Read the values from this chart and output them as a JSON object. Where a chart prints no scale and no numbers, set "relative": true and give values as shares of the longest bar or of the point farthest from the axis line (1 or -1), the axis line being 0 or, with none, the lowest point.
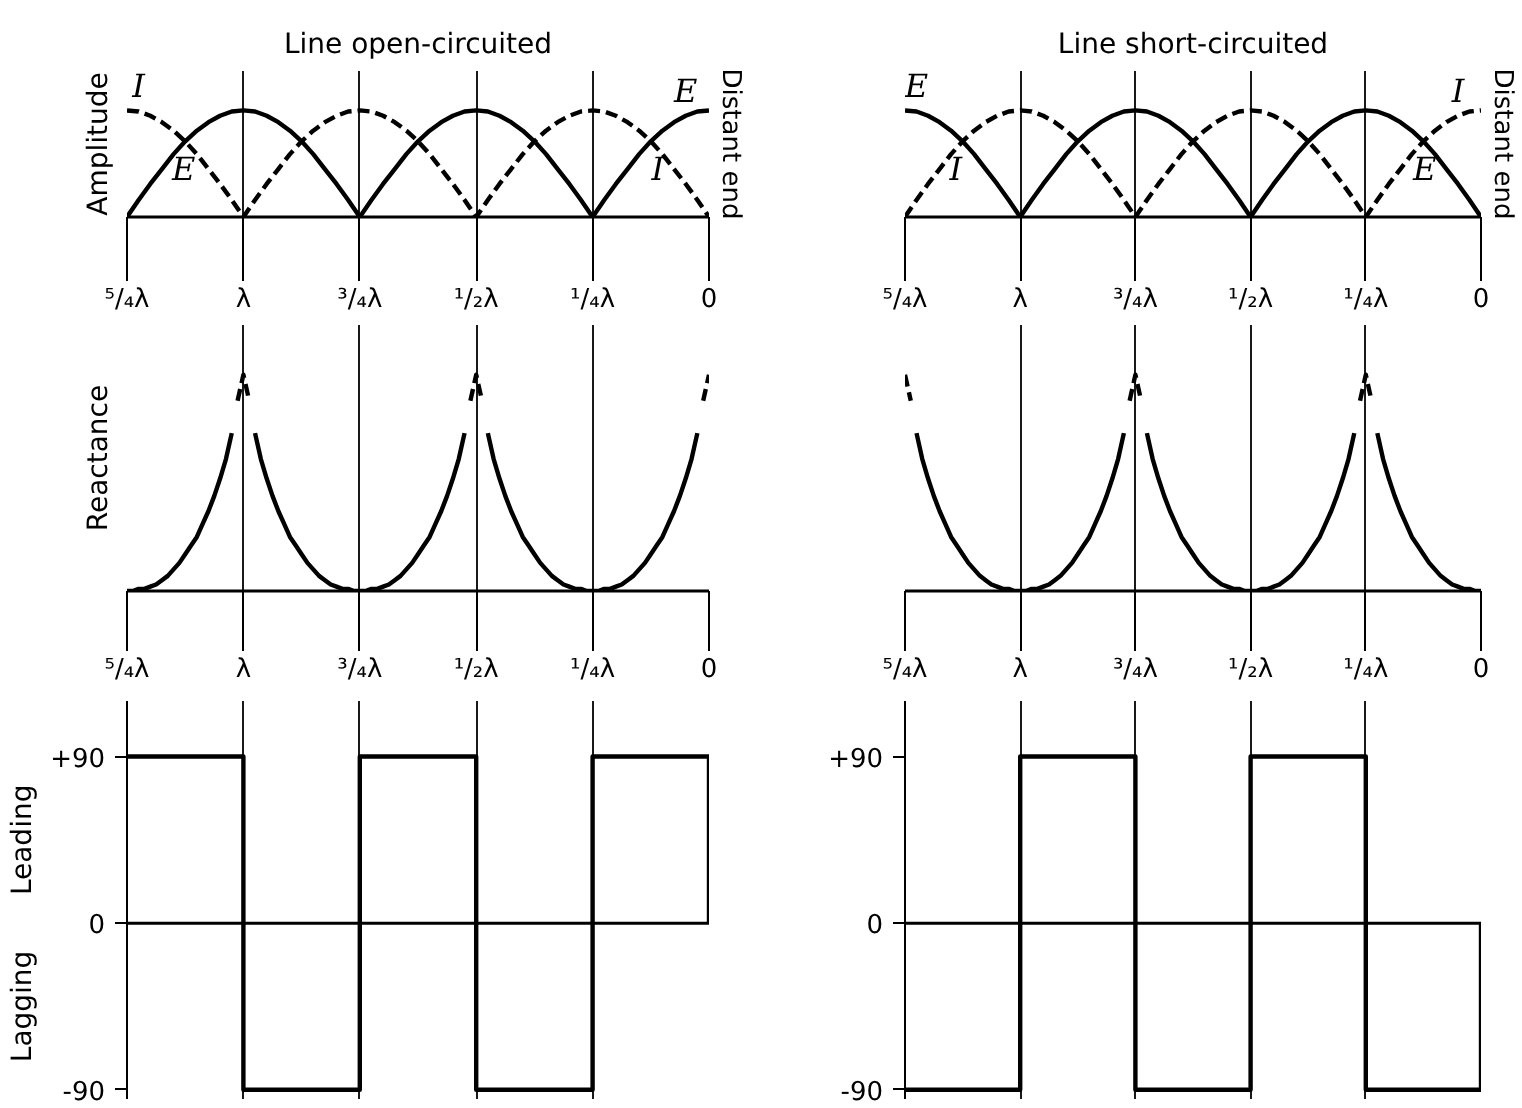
{
  "chart_data": [
    {
      "type": "line",
      "title": "Line open-circuited",
      "ylabel": "Amplitude",
      "relative": true,
      "grid": "x",
      "categories": [
        "⁵/₄λ",
        null,
        null,
        null,
        null,
        null,
        null,
        null,
        null,
        null,
        "λ",
        null,
        null,
        null,
        null,
        null,
        null,
        null,
        null,
        null,
        "³/₄λ",
        null,
        null,
        null,
        null,
        null,
        null,
        null,
        null,
        null,
        "¹/₂λ",
        null,
        null,
        null,
        null,
        null,
        null,
        null,
        null,
        null,
        "¹/₄λ",
        null,
        null,
        null,
        null,
        null,
        null,
        null,
        null,
        null,
        "0"
      ],
      "annotations": [
        "Distant end"
      ],
      "series": [
        {
          "name": "E",
          "color": "#000000",
          "line_style": "solid",
          "values": [
            0,
            0.16,
            0.31,
            0.45,
            0.59,
            0.71,
            0.81,
            0.89,
            0.95,
            0.99,
            1,
            0.99,
            0.95,
            0.89,
            0.81,
            0.71,
            0.59,
            0.45,
            0.31,
            0.16,
            0,
            0.16,
            0.31,
            0.45,
            0.59,
            0.71,
            0.81,
            0.89,
            0.95,
            0.99,
            1,
            0.99,
            0.95,
            0.89,
            0.81,
            0.71,
            0.59,
            0.45,
            0.31,
            0.16,
            0,
            0.16,
            0.31,
            0.45,
            0.59,
            0.71,
            0.81,
            0.89,
            0.95,
            0.99,
            1
          ]
        },
        {
          "name": "I",
          "color": "#000000",
          "line_style": "dashed",
          "values": [
            1,
            0.99,
            0.95,
            0.89,
            0.81,
            0.71,
            0.59,
            0.45,
            0.31,
            0.16,
            0,
            0.16,
            0.31,
            0.45,
            0.59,
            0.71,
            0.81,
            0.89,
            0.95,
            0.99,
            1,
            0.99,
            0.95,
            0.89,
            0.81,
            0.71,
            0.59,
            0.45,
            0.31,
            0.16,
            0,
            0.16,
            0.31,
            0.45,
            0.59,
            0.71,
            0.81,
            0.89,
            0.95,
            0.99,
            1,
            0.99,
            0.95,
            0.89,
            0.81,
            0.71,
            0.59,
            0.45,
            0.31,
            0.16,
            0
          ]
        }
      ]
    },
    {
      "type": "line",
      "title": "Line short-circuited",
      "relative": true,
      "grid": "x",
      "categories": [
        "⁵/₄λ",
        null,
        null,
        null,
        null,
        null,
        null,
        null,
        null,
        null,
        "λ",
        null,
        null,
        null,
        null,
        null,
        null,
        null,
        null,
        null,
        "³/₄λ",
        null,
        null,
        null,
        null,
        null,
        null,
        null,
        null,
        null,
        "¹/₂λ",
        null,
        null,
        null,
        null,
        null,
        null,
        null,
        null,
        null,
        "¹/₄λ",
        null,
        null,
        null,
        null,
        null,
        null,
        null,
        null,
        null,
        "0"
      ],
      "annotations": [
        "Distant end"
      ],
      "series": [
        {
          "name": "E",
          "color": "#000000",
          "line_style": "solid",
          "values": [
            1,
            0.99,
            0.95,
            0.89,
            0.81,
            0.71,
            0.59,
            0.45,
            0.31,
            0.16,
            0,
            0.16,
            0.31,
            0.45,
            0.59,
            0.71,
            0.81,
            0.89,
            0.95,
            0.99,
            1,
            0.99,
            0.95,
            0.89,
            0.81,
            0.71,
            0.59,
            0.45,
            0.31,
            0.16,
            0,
            0.16,
            0.31,
            0.45,
            0.59,
            0.71,
            0.81,
            0.89,
            0.95,
            0.99,
            1,
            0.99,
            0.95,
            0.89,
            0.81,
            0.71,
            0.59,
            0.45,
            0.31,
            0.16,
            0
          ]
        },
        {
          "name": "I",
          "color": "#000000",
          "line_style": "dashed",
          "values": [
            0,
            0.16,
            0.31,
            0.45,
            0.59,
            0.71,
            0.81,
            0.89,
            0.95,
            0.99,
            1,
            0.99,
            0.95,
            0.89,
            0.81,
            0.71,
            0.59,
            0.45,
            0.31,
            0.16,
            0,
            0.16,
            0.31,
            0.45,
            0.59,
            0.71,
            0.81,
            0.89,
            0.95,
            0.99,
            1,
            0.99,
            0.95,
            0.89,
            0.81,
            0.71,
            0.59,
            0.45,
            0.31,
            0.16,
            0,
            0.16,
            0.31,
            0.45,
            0.59,
            0.71,
            0.81,
            0.89,
            0.95,
            0.99,
            1
          ]
        }
      ]
    },
    {
      "type": "line",
      "ylabel": "Reactance",
      "relative": true,
      "grid": "x",
      "categories": [
        "⁵/₄λ",
        null,
        null,
        null,
        null,
        null,
        null,
        null,
        null,
        null,
        null,
        null,
        null,
        null,
        null,
        null,
        null,
        null,
        null,
        null,
        "λ",
        null,
        null,
        null,
        null,
        null,
        null,
        null,
        null,
        null,
        null,
        null,
        null,
        null,
        null,
        null,
        null,
        null,
        null,
        null,
        "³/₄λ",
        null,
        null,
        null,
        null,
        null,
        null,
        null,
        null,
        null,
        null,
        null,
        null,
        null,
        null,
        null,
        null,
        null,
        null,
        null,
        "¹/₂λ",
        null,
        null,
        null,
        null,
        null,
        null,
        null,
        null,
        null,
        null,
        null,
        null,
        null,
        null,
        null,
        null,
        null,
        null,
        null,
        "¹/₄λ",
        null,
        null,
        null,
        null,
        null,
        null,
        null,
        null,
        null,
        null,
        null,
        null,
        null,
        null,
        null,
        null,
        null,
        null,
        null,
        "0"
      ],
      "series": [
        {
          "color": "#000000",
          "line_style": "solid",
          "values": [
            0,
            0,
            0.01,
            0.01,
            0.02,
            0.03,
            0.05,
            0.07,
            0.1,
            0.13,
            0.17,
            0.21,
            0.25,
            0.31,
            0.37,
            0.44,
            0.52,
            0.61,
            0.73,
            null,
            null,
            null,
            0.73,
            0.61,
            0.52,
            0.44,
            0.37,
            0.31,
            0.25,
            0.21,
            0.17,
            0.13,
            0.1,
            0.07,
            0.05,
            0.03,
            0.02,
            0.01,
            0.01,
            0,
            0,
            0,
            0.01,
            0.01,
            0.02,
            0.03,
            0.05,
            0.07,
            0.1,
            0.13,
            0.17,
            0.21,
            0.25,
            0.31,
            0.37,
            0.44,
            0.52,
            0.61,
            0.73,
            null,
            null,
            null,
            0.73,
            0.61,
            0.52,
            0.44,
            0.37,
            0.31,
            0.25,
            0.21,
            0.17,
            0.13,
            0.1,
            0.07,
            0.05,
            0.03,
            0.02,
            0.01,
            0.01,
            0,
            0,
            0,
            0.01,
            0.01,
            0.02,
            0.03,
            0.05,
            0.07,
            0.1,
            0.13,
            0.17,
            0.21,
            0.25,
            0.31,
            0.37,
            0.44,
            0.52,
            0.61,
            0.73,
            null,
            null
          ]
        },
        {
          "color": "#000000",
          "line_style": "dashed",
          "values": [
            null,
            null,
            null,
            null,
            null,
            null,
            null,
            null,
            null,
            null,
            null,
            null,
            null,
            null,
            null,
            null,
            null,
            null,
            null,
            0.88,
            1,
            0.88,
            null,
            null,
            null,
            null,
            null,
            null,
            null,
            null,
            null,
            null,
            null,
            null,
            null,
            null,
            null,
            null,
            null,
            null,
            null,
            null,
            null,
            null,
            null,
            null,
            null,
            null,
            null,
            null,
            null,
            null,
            null,
            null,
            null,
            null,
            null,
            null,
            null,
            0.88,
            1,
            0.88,
            null,
            null,
            null,
            null,
            null,
            null,
            null,
            null,
            null,
            null,
            null,
            null,
            null,
            null,
            null,
            null,
            null,
            null,
            null,
            null,
            null,
            null,
            null,
            null,
            null,
            null,
            null,
            null,
            null,
            null,
            null,
            null,
            null,
            null,
            null,
            null,
            null,
            0.88,
            1
          ]
        }
      ]
    },
    {
      "type": "line",
      "relative": true,
      "grid": "x",
      "categories": [
        "⁵/₄λ",
        null,
        null,
        null,
        null,
        null,
        null,
        null,
        null,
        null,
        null,
        null,
        null,
        null,
        null,
        null,
        null,
        null,
        null,
        null,
        "λ",
        null,
        null,
        null,
        null,
        null,
        null,
        null,
        null,
        null,
        null,
        null,
        null,
        null,
        null,
        null,
        null,
        null,
        null,
        null,
        "³/₄λ",
        null,
        null,
        null,
        null,
        null,
        null,
        null,
        null,
        null,
        null,
        null,
        null,
        null,
        null,
        null,
        null,
        null,
        null,
        null,
        "¹/₂λ",
        null,
        null,
        null,
        null,
        null,
        null,
        null,
        null,
        null,
        null,
        null,
        null,
        null,
        null,
        null,
        null,
        null,
        null,
        null,
        "¹/₄λ",
        null,
        null,
        null,
        null,
        null,
        null,
        null,
        null,
        null,
        null,
        null,
        null,
        null,
        null,
        null,
        null,
        null,
        null,
        null,
        "0"
      ],
      "series": [
        {
          "color": "#000000",
          "line_style": "solid",
          "values": [
            null,
            null,
            0.73,
            0.61,
            0.52,
            0.44,
            0.37,
            0.31,
            0.25,
            0.21,
            0.17,
            0.13,
            0.1,
            0.07,
            0.05,
            0.03,
            0.02,
            0.01,
            0.01,
            0,
            0,
            0,
            0.01,
            0.01,
            0.02,
            0.03,
            0.05,
            0.07,
            0.1,
            0.13,
            0.17,
            0.21,
            0.25,
            0.31,
            0.37,
            0.44,
            0.52,
            0.61,
            0.73,
            null,
            null,
            null,
            0.73,
            0.61,
            0.52,
            0.44,
            0.37,
            0.31,
            0.25,
            0.21,
            0.17,
            0.13,
            0.1,
            0.07,
            0.05,
            0.03,
            0.02,
            0.01,
            0.01,
            0,
            0,
            0,
            0.01,
            0.01,
            0.02,
            0.03,
            0.05,
            0.07,
            0.1,
            0.13,
            0.17,
            0.21,
            0.25,
            0.31,
            0.37,
            0.44,
            0.52,
            0.61,
            0.73,
            null,
            null,
            null,
            0.73,
            0.61,
            0.52,
            0.44,
            0.37,
            0.31,
            0.25,
            0.21,
            0.17,
            0.13,
            0.1,
            0.07,
            0.05,
            0.03,
            0.02,
            0.01,
            0.01,
            0,
            0
          ]
        },
        {
          "color": "#000000",
          "line_style": "dashed",
          "values": [
            1,
            0.88,
            null,
            null,
            null,
            null,
            null,
            null,
            null,
            null,
            null,
            null,
            null,
            null,
            null,
            null,
            null,
            null,
            null,
            null,
            null,
            null,
            null,
            null,
            null,
            null,
            null,
            null,
            null,
            null,
            null,
            null,
            null,
            null,
            null,
            null,
            null,
            null,
            null,
            0.88,
            1,
            0.88,
            null,
            null,
            null,
            null,
            null,
            null,
            null,
            null,
            null,
            null,
            null,
            null,
            null,
            null,
            null,
            null,
            null,
            null,
            null,
            null,
            null,
            null,
            null,
            null,
            null,
            null,
            null,
            null,
            null,
            null,
            null,
            null,
            null,
            null,
            null,
            null,
            null,
            0.88,
            1,
            0.88,
            null,
            null,
            null,
            null,
            null,
            null,
            null,
            null,
            null,
            null,
            null,
            null,
            null,
            null,
            null,
            null,
            null,
            null,
            null
          ]
        }
      ]
    },
    {
      "type": "step",
      "categories": [
        null,
        null,
        null,
        null,
        null,
        null
      ],
      "values": [
        90,
        -90,
        90,
        -90,
        90,
        0
      ],
      "color": "#000000",
      "ylim": [
        -95,
        120
      ],
      "yticks": [
        {
          "value": 90,
          "label": "+90"
        },
        {
          "value": 0,
          "label": "0"
        },
        {
          "value": -90,
          "label": "-90"
        }
      ],
      "tick_labels": "y",
      "grid": "x",
      "ref_lines": [
        {
          "axis": "y",
          "value": 0
        }
      ],
      "annotations": [
        "Leading",
        "Lagging"
      ]
    },
    {
      "type": "step",
      "categories": [
        null,
        null,
        null,
        null,
        null,
        null
      ],
      "values": [
        -90,
        90,
        -90,
        90,
        -90,
        0
      ],
      "color": "#000000",
      "ylim": [
        -95,
        120
      ],
      "yticks": [
        {
          "value": 90,
          "label": "+90"
        },
        {
          "value": 0,
          "label": "0"
        },
        {
          "value": -90,
          "label": "-90"
        }
      ],
      "tick_labels": "y",
      "grid": "x",
      "ref_lines": [
        {
          "axis": "y",
          "value": 0
        }
      ]
    }
  ]
}
